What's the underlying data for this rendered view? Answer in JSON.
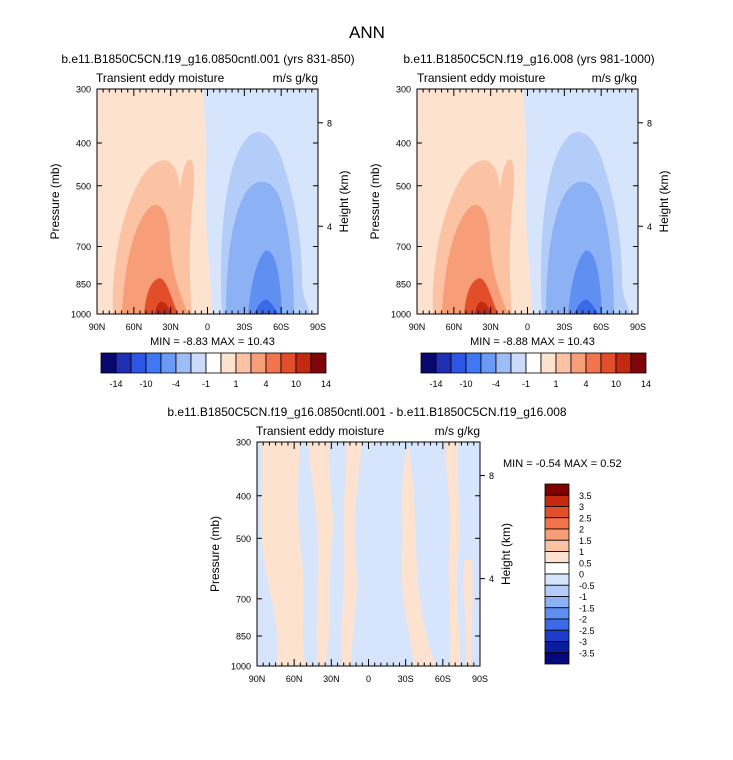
{
  "figure": {
    "title": "ANN"
  },
  "panels": [
    {
      "title": "b.e11.B1850C5CN.f19_g16.0850cntl.001 (yrs 831-850)",
      "subtitle_left": "Transient eddy moisture",
      "subtitle_right": "m/s g/kg",
      "stats": "MIN = -8.83  MAX = 10.43"
    },
    {
      "title": "b.e11.B1850C5CN.f19_g16.008 (yrs 981-1000)",
      "subtitle_left": "Transient eddy moisture",
      "subtitle_right": "m/s g/kg",
      "stats": "MIN = -8.88  MAX = 10.43"
    },
    {
      "title": "b.e11.B1850C5CN.f19_g16.0850cntl.001 - b.e11.B1850C5CN.f19_g16.008",
      "subtitle_left": "Transient eddy moisture",
      "subtitle_right": "m/s g/kg",
      "stats": "MIN = -0.54  MAX =  0.52"
    }
  ],
  "axes": {
    "ylabel": "Pressure (mb)",
    "ylabel_right": "Height (km)",
    "y_ticks": [
      "300",
      "400",
      "500",
      "700",
      "850",
      "1000"
    ],
    "y_right_ticks": [
      "8",
      "4"
    ],
    "x_ticks": [
      "90N",
      "60N",
      "30N",
      "0",
      "30S",
      "60S",
      "90S"
    ]
  },
  "colorbars": {
    "main": {
      "labels": [
        "-14",
        "-10",
        "-4",
        "-1",
        "1",
        "4",
        "10",
        "14"
      ],
      "colors": [
        "#08086e",
        "#1e2fb4",
        "#2d55e6",
        "#3f78f2",
        "#6b9af5",
        "#9ebcf6",
        "#c9dbf9",
        "#ffffff",
        "#fde3cf",
        "#fbc3a4",
        "#f79e78",
        "#f2744c",
        "#e24e2a",
        "#c42a10",
        "#80050a"
      ]
    },
    "diff": {
      "labels": [
        "3.5",
        "3",
        "2.5",
        "2",
        "1.5",
        "1",
        "0.5",
        "0",
        "-0.5",
        "-1",
        "-1.5",
        "-2",
        "-2.5",
        "-3",
        "-3.5"
      ],
      "colors": [
        "#800000",
        "#c42a10",
        "#e24e2a",
        "#f2744c",
        "#f79e78",
        "#fbc3a4",
        "#fde3cf",
        "#ffffff",
        "#d6e5fb",
        "#b3cdf8",
        "#8cb2f5",
        "#5f8ff1",
        "#3a6ae8",
        "#1d3ccc",
        "#0a1d9c",
        "#05087a"
      ]
    }
  },
  "chart_data": [
    {
      "type": "heatmap",
      "title": "b.e11.B1850C5CN.f19_g16.0850cntl.001 (yrs 831-850)",
      "xlabel": "",
      "ylabel": "Pressure (mb)",
      "x_ticks": [
        "90N",
        "60N",
        "30N",
        "0",
        "30S",
        "60S",
        "90S"
      ],
      "y_ticks": [
        300,
        400,
        500,
        700,
        850,
        1000
      ],
      "min": -8.83,
      "max": 10.43,
      "levels": [
        -14,
        -10,
        -4,
        -1,
        1,
        4,
        10,
        14
      ],
      "structure": "positive lobe 90N-0 peaking ~35N near 1000 mb; negative lobe 0-80S peaking ~45S near 850-1000 mb"
    },
    {
      "type": "heatmap",
      "title": "b.e11.B1850C5CN.f19_g16.008 (yrs 981-1000)",
      "xlabel": "",
      "ylabel": "Pressure (mb)",
      "x_ticks": [
        "90N",
        "60N",
        "30N",
        "0",
        "30S",
        "60S",
        "90S"
      ],
      "y_ticks": [
        300,
        400,
        500,
        700,
        850,
        1000
      ],
      "min": -8.88,
      "max": 10.43,
      "levels": [
        -14,
        -10,
        -4,
        -1,
        1,
        4,
        10,
        14
      ],
      "structure": "positive lobe 90N-0 peaking ~35N near 1000 mb; negative lobe 0-80S peaking ~45S near 850-1000 mb"
    },
    {
      "type": "heatmap",
      "title": "b.e11.B1850C5CN.f19_g16.0850cntl.001 - b.e11.B1850C5CN.f19_g16.008",
      "xlabel": "",
      "ylabel": "Pressure (mb)",
      "x_ticks": [
        "90N",
        "60N",
        "30N",
        "0",
        "30S",
        "60S",
        "90S"
      ],
      "y_ticks": [
        300,
        400,
        500,
        700,
        850,
        1000
      ],
      "min": -0.54,
      "max": 0.52,
      "levels": [
        -3.5,
        -3,
        -2.5,
        -2,
        -1.5,
        -1,
        -0.5,
        0,
        0.5,
        1,
        1.5,
        2,
        2.5,
        3,
        3.5
      ],
      "structure": "mostly within +/-0.5 everywhere; alternating pale positive and negative bands"
    }
  ]
}
